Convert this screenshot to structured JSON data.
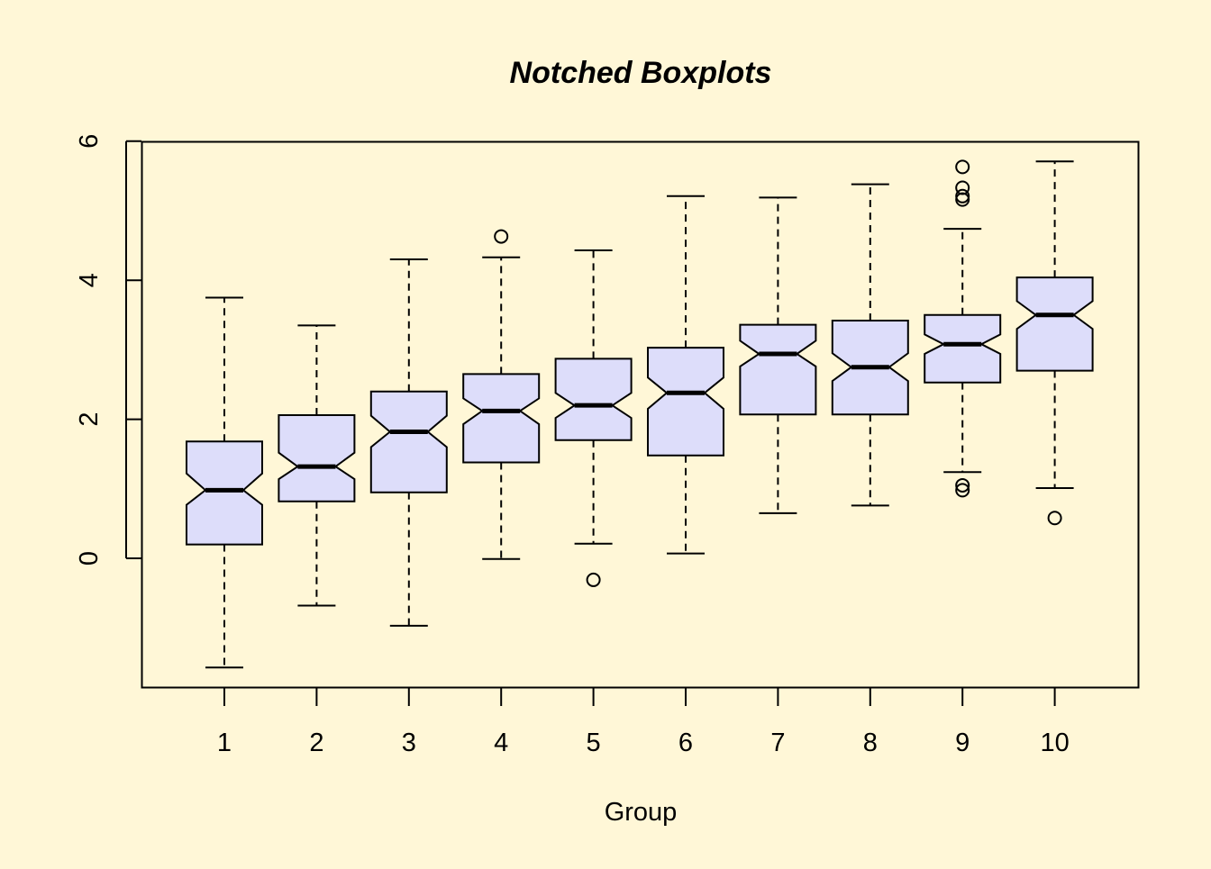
{
  "chart_data": {
    "type": "boxplot",
    "title": "Notched Boxplots",
    "xlabel": "Group",
    "ylabel": "",
    "ylim": [
      -1.9,
      6
    ],
    "yticks": [
      0,
      2,
      4,
      6
    ],
    "box_fill": "#DDDDFA",
    "background": "#FFF7D7",
    "categories": [
      "1",
      "2",
      "3",
      "4",
      "5",
      "6",
      "7",
      "8",
      "9",
      "10"
    ],
    "boxes": [
      {
        "group": "1",
        "whisker_low": -1.57,
        "q1": 0.2,
        "median": 0.98,
        "q3": 1.68,
        "whisker_high": 3.75,
        "notch_low": 0.77,
        "notch_high": 1.22,
        "outliers": []
      },
      {
        "group": "2",
        "whisker_low": -0.68,
        "q1": 0.82,
        "median": 1.32,
        "q3": 2.06,
        "whisker_high": 3.35,
        "notch_low": 1.14,
        "notch_high": 1.52,
        "outliers": []
      },
      {
        "group": "3",
        "whisker_low": -0.97,
        "q1": 0.95,
        "median": 1.82,
        "q3": 2.4,
        "whisker_high": 4.3,
        "notch_low": 1.6,
        "notch_high": 2.05,
        "outliers": []
      },
      {
        "group": "4",
        "whisker_low": -0.01,
        "q1": 1.38,
        "median": 2.12,
        "q3": 2.65,
        "whisker_high": 4.33,
        "notch_low": 1.93,
        "notch_high": 2.3,
        "outliers": [
          4.63
        ]
      },
      {
        "group": "5",
        "whisker_low": 0.21,
        "q1": 1.7,
        "median": 2.2,
        "q3": 2.87,
        "whisker_high": 4.43,
        "notch_low": 2.02,
        "notch_high": 2.38,
        "outliers": [
          -0.31
        ]
      },
      {
        "group": "6",
        "whisker_low": 0.07,
        "q1": 1.48,
        "median": 2.38,
        "q3": 3.03,
        "whisker_high": 5.21,
        "notch_low": 2.15,
        "notch_high": 2.6,
        "outliers": []
      },
      {
        "group": "7",
        "whisker_low": 0.65,
        "q1": 2.07,
        "median": 2.94,
        "q3": 3.36,
        "whisker_high": 5.19,
        "notch_low": 2.76,
        "notch_high": 3.13,
        "outliers": []
      },
      {
        "group": "8",
        "whisker_low": 0.76,
        "q1": 2.07,
        "median": 2.75,
        "q3": 3.42,
        "whisker_high": 5.38,
        "notch_low": 2.55,
        "notch_high": 2.95,
        "outliers": []
      },
      {
        "group": "9",
        "whisker_low": 1.24,
        "q1": 2.53,
        "median": 3.08,
        "q3": 3.5,
        "whisker_high": 4.74,
        "notch_low": 2.94,
        "notch_high": 3.22,
        "outliers": [
          0.98,
          1.05,
          5.16,
          5.21,
          5.33,
          5.63
        ]
      },
      {
        "group": "10",
        "whisker_low": 1.01,
        "q1": 2.7,
        "median": 3.5,
        "q3": 4.04,
        "whisker_high": 5.71,
        "notch_low": 3.3,
        "notch_high": 3.7,
        "outliers": [
          0.58
        ]
      }
    ]
  }
}
